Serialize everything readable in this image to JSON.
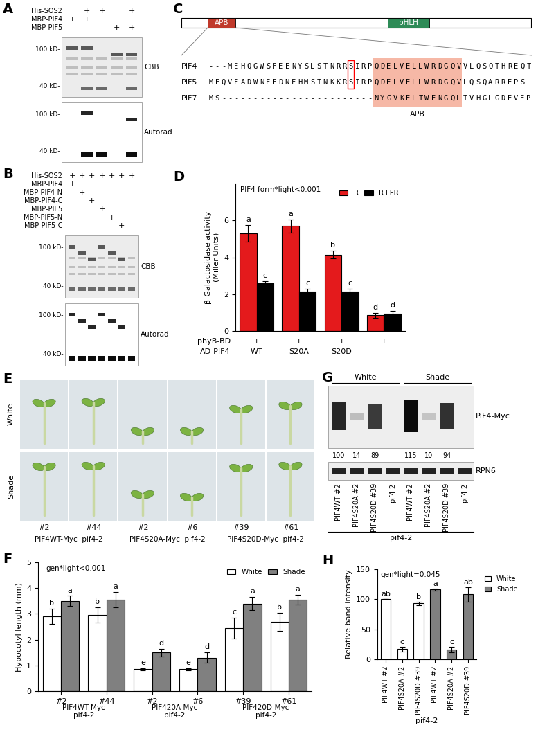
{
  "chart_data": [
    {
      "panel": "D",
      "type": "bar",
      "categories": [
        "WT",
        "S20A",
        "S20D",
        "-"
      ],
      "category_title": "AD-PIF4",
      "category_rows": [
        {
          "label": "phyB-BD",
          "marks": [
            "+",
            "+",
            "+",
            "+"
          ]
        }
      ],
      "y_label": "β-Galactosidase activity\n(Miller Units)",
      "annotation": "PIF4 form*light<0.001",
      "ylim": [
        0,
        8
      ],
      "yticks": [
        0,
        2,
        4,
        6
      ],
      "legend": "upper right",
      "series": [
        {
          "name": "R",
          "color": "#e41a1c",
          "values": [
            5.3,
            5.7,
            4.15,
            0.85
          ],
          "errors": [
            0.45,
            0.35,
            0.2,
            0.12
          ],
          "letters": [
            "a",
            "a",
            "b",
            "d"
          ]
        },
        {
          "name": "R+FR",
          "color": "#000000",
          "values": [
            2.6,
            2.15,
            2.15,
            0.95
          ],
          "errors": [
            0.1,
            0.15,
            0.15,
            0.15
          ],
          "letters": [
            "c",
            "c",
            "c",
            "d"
          ]
        }
      ]
    },
    {
      "panel": "F",
      "type": "bar",
      "categories": [
        "#2",
        "#44",
        "#2",
        "#6",
        "#39",
        "#61"
      ],
      "groups": [
        "PIF4WT-Myc\npif4-2",
        "PIF420A-Myc\npif4-2",
        "PIF420D-Myc\npif4-2"
      ],
      "y_label": "Hypocotyl length (mm)",
      "annotation": "gen*light<0.001",
      "ylim": [
        0,
        5
      ],
      "yticks": [
        0,
        1,
        2,
        3,
        4,
        5
      ],
      "legend": "upper right",
      "series": [
        {
          "name": "White",
          "color": "#ffffff",
          "values": [
            2.9,
            2.95,
            0.85,
            0.85,
            2.45,
            2.7
          ],
          "errors": [
            0.3,
            0.3,
            0.05,
            0.05,
            0.4,
            0.35
          ],
          "letters": [
            "b",
            "b",
            "e",
            "e",
            "c",
            "b"
          ]
        },
        {
          "name": "Shade",
          "color": "#808080",
          "values": [
            3.5,
            3.55,
            1.5,
            1.3,
            3.4,
            3.55
          ],
          "errors": [
            0.2,
            0.3,
            0.15,
            0.2,
            0.25,
            0.2
          ],
          "letters": [
            "a",
            "a",
            "d",
            "d",
            "a",
            "a"
          ]
        }
      ]
    },
    {
      "panel": "H",
      "type": "bar",
      "categories": [
        "PIF4WT #2",
        "PIF4S20A #2",
        "PIF4S20D #39",
        "PIF4WT #2",
        "PIF4S20A #2",
        "PIF4S20D #39"
      ],
      "x_label": "pif4-2",
      "y_label": "Relative band intensity",
      "annotation": "gen*light=0.045",
      "ylim": [
        0,
        150
      ],
      "yticks": [
        0,
        50,
        100,
        150
      ],
      "legend": "upper right",
      "series": [
        {
          "name": "White",
          "color": "#ffffff",
          "values": [
            100,
            17,
            93,
            null,
            null,
            null
          ],
          "errors": [
            0,
            4,
            3,
            null,
            null,
            null
          ],
          "letters": [
            "ab",
            "c",
            "b",
            null,
            null,
            null
          ]
        },
        {
          "name": "Shade",
          "color": "#808080",
          "values": [
            null,
            null,
            null,
            116,
            16,
            108
          ],
          "errors": [
            null,
            null,
            null,
            2,
            5,
            12
          ],
          "letters": [
            null,
            null,
            null,
            "a",
            "c",
            "ab"
          ]
        }
      ]
    }
  ],
  "panel_A": {
    "panel": "A",
    "rows": [
      {
        "label": "His-SOS2",
        "marks": [
          null,
          "+",
          "+",
          null,
          "+"
        ]
      },
      {
        "label": "MBP-PIF4",
        "marks": [
          "+",
          "+",
          null,
          null,
          null
        ]
      },
      {
        "label": "MBP-PIF5",
        "marks": [
          null,
          null,
          null,
          "+",
          "+"
        ]
      }
    ],
    "gels": [
      {
        "label": "CBB",
        "markers": [
          "100 kD-",
          "40 kD-"
        ]
      },
      {
        "label": "Autorad",
        "markers": [
          "100 kD-",
          "40 kD-"
        ]
      }
    ]
  },
  "panel_B": {
    "panel": "B",
    "rows": [
      {
        "label": "His-SOS2",
        "marks": [
          "+",
          "+",
          "+",
          "+",
          "+",
          "+",
          "+"
        ]
      },
      {
        "label": "MBP-PIF4",
        "marks": [
          "+",
          null,
          null,
          null,
          null,
          null,
          null
        ]
      },
      {
        "label": "MBP-PIF4-N",
        "marks": [
          null,
          "+",
          null,
          null,
          null,
          null,
          null
        ]
      },
      {
        "label": "MBP-PIF4-C",
        "marks": [
          null,
          null,
          "+",
          null,
          null,
          null,
          null
        ]
      },
      {
        "label": "MBP-PIF5",
        "marks": [
          null,
          null,
          null,
          "+",
          null,
          null,
          null
        ]
      },
      {
        "label": "MBP-PIF5-N",
        "marks": [
          null,
          null,
          null,
          null,
          "+",
          null,
          null
        ]
      },
      {
        "label": "MBP-PIF5-C",
        "marks": [
          null,
          null,
          null,
          null,
          null,
          "+",
          null
        ]
      }
    ],
    "gels": [
      {
        "label": "CBB",
        "markers": [
          "100 kD-",
          "40 kD-"
        ]
      },
      {
        "label": "Autorad",
        "markers": [
          "100 kD-",
          "40 kD-"
        ]
      }
    ]
  },
  "panel_C": {
    "panel": "C",
    "domains": [
      {
        "name": "APB",
        "color": "#c0392b"
      },
      {
        "name": "bHLH",
        "color": "#2e8b57"
      }
    ],
    "sequences": [
      {
        "name": "PIF4",
        "seq": "---MEHQGWSFEENYSLSTNRRSIRPQDELVELLWRDGQVVLQSQTHREQT"
      },
      {
        "name": "PIF5",
        "seq": "MEQVFADWNFEDNFHMSTNKKRSIRPQDELVELLWRDGQVLQSQARREPS"
      },
      {
        "name": "PIF7",
        "seq": "MS------------------------NYGVKELTWENGQLTVHGLGDEVEP"
      }
    ],
    "apb_columns": [
      26,
      40
    ],
    "highlight_label": "APB",
    "site_column": 22,
    "site_sequences": [
      "PIF4",
      "PIF5"
    ]
  },
  "panel_E": {
    "panel": "E",
    "row_labels": [
      "White",
      "Shade"
    ],
    "columns": [
      "#2",
      "#44",
      "#2",
      "#6",
      "#39",
      "#61"
    ],
    "groups": [
      "PIF4WT-Myc  pif4-2",
      "PIF4S20A-Myc  pif4-2",
      "PIF4S20D-Myc  pif4-2"
    ]
  },
  "panel_G": {
    "panel": "G",
    "conditions": [
      "White",
      "Shade"
    ],
    "lanes": [
      "PIF4WT #2",
      "PIF4S20A #2",
      "PIF4S20D #39",
      "pif4-2"
    ],
    "values": [
      [
        100,
        14,
        89,
        null
      ],
      [
        115,
        10,
        94,
        null
      ]
    ],
    "bands": [
      "PIF4-Myc",
      "RPN6"
    ],
    "genotype": "pif4-2"
  }
}
